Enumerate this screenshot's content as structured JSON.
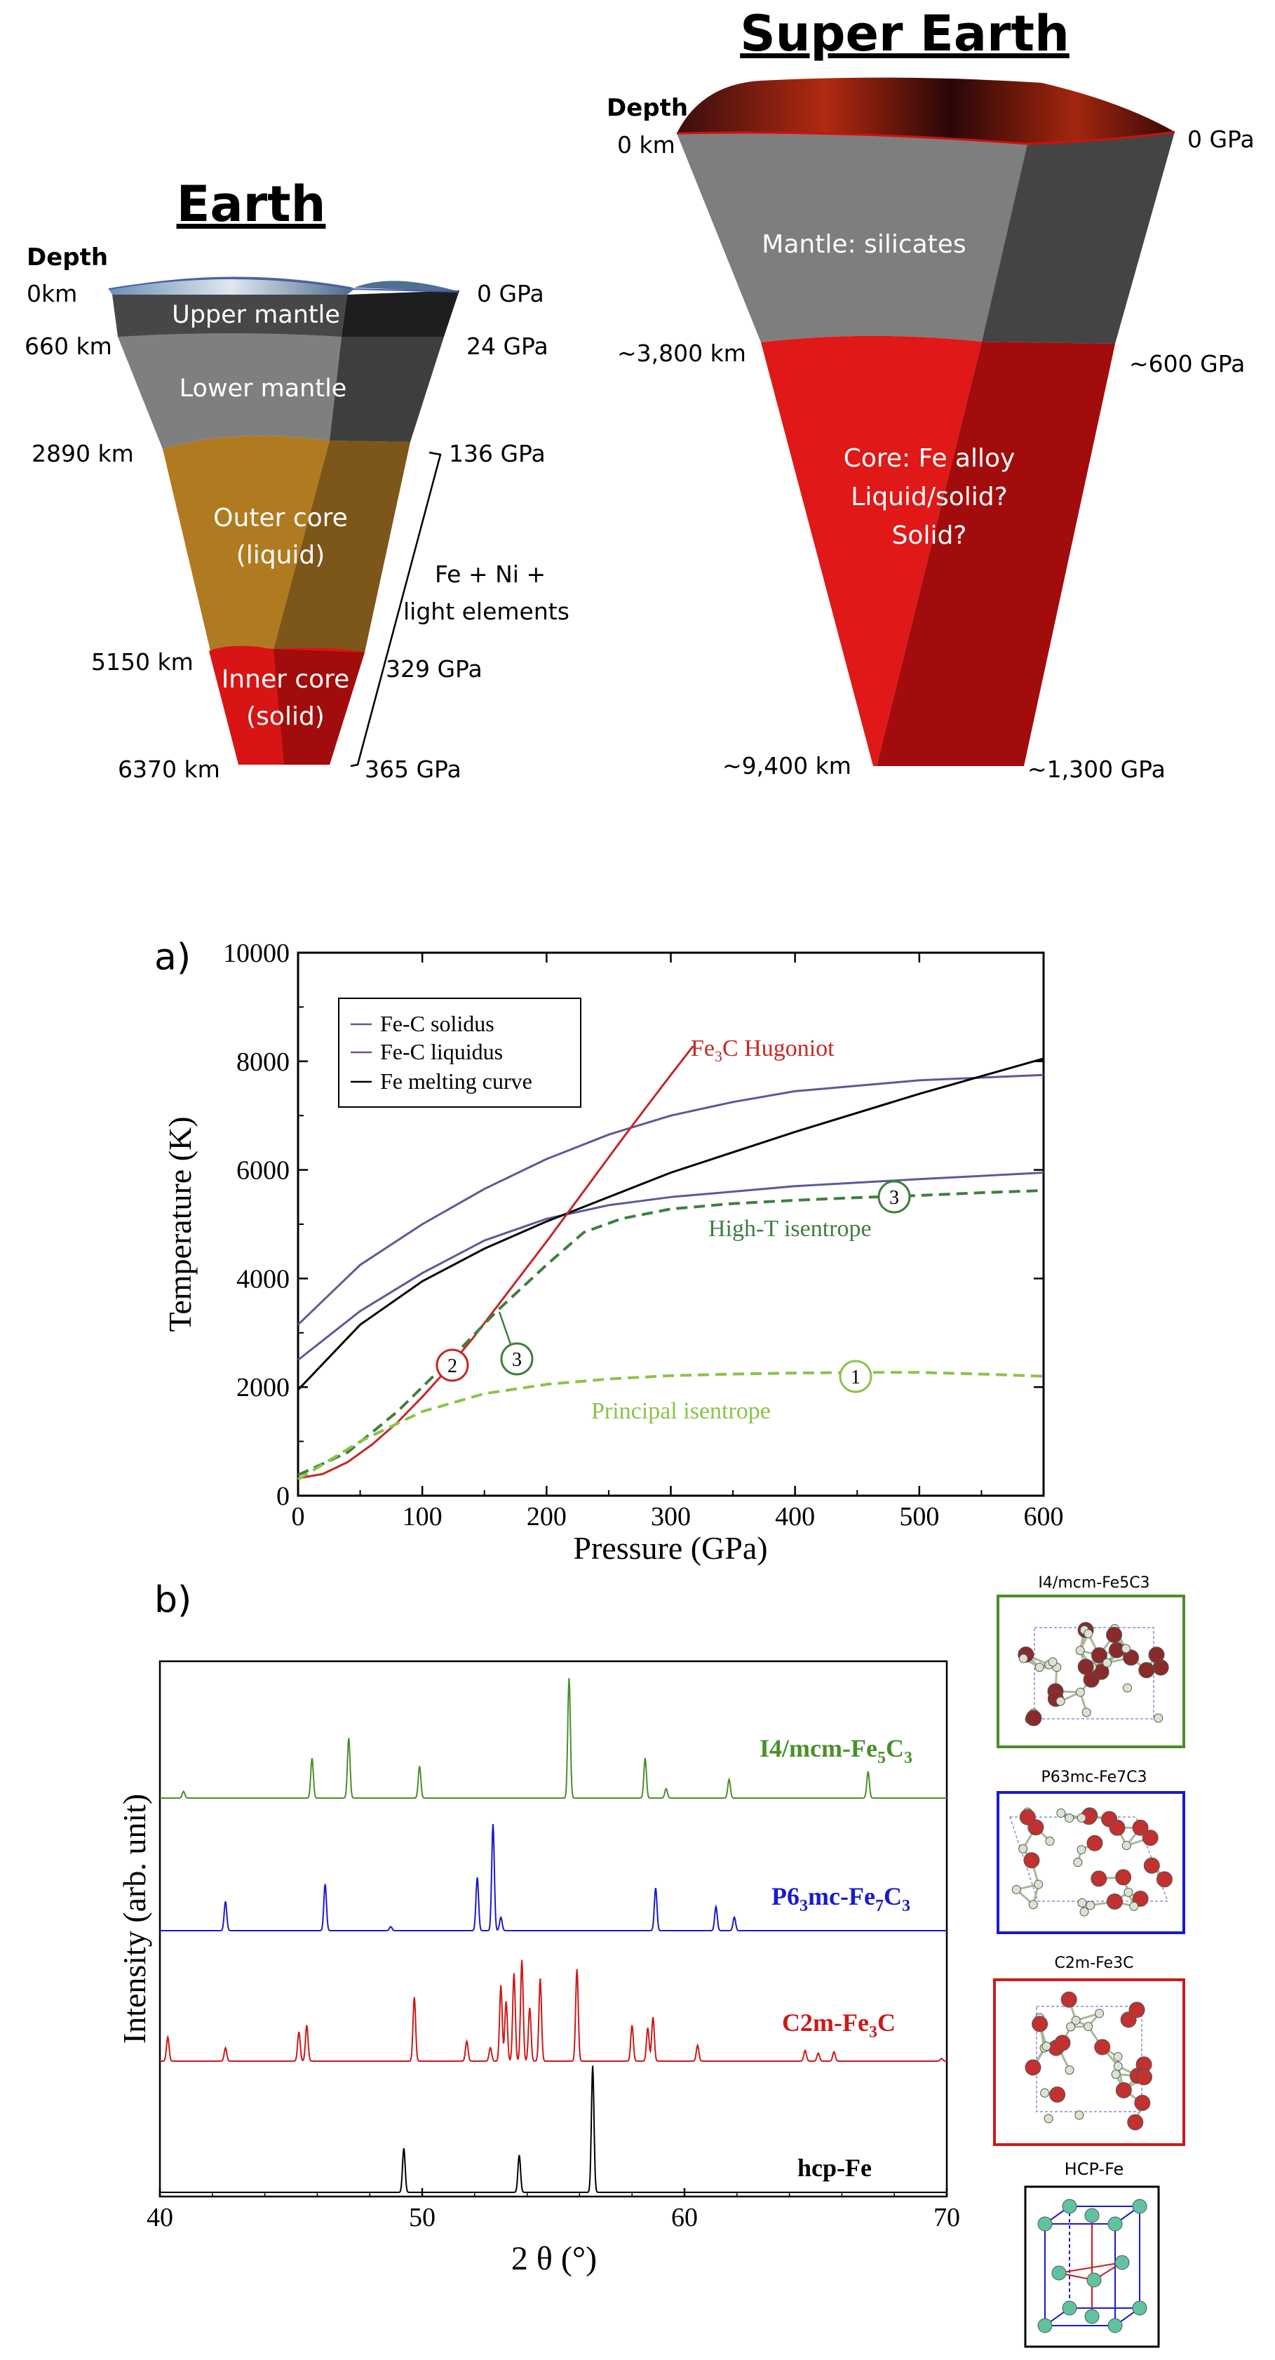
{
  "earth": {
    "title": "Earth",
    "depth_header": "Depth",
    "layers": [
      "Upper mantle",
      "Lower mantle",
      "Outer core",
      "(liquid)",
      "Inner core",
      "(solid)"
    ],
    "depths": [
      "0km",
      "660 km",
      "2890 km",
      "5150 km",
      "6370 km"
    ],
    "pressures": [
      "0 GPa",
      "24 GPa",
      "136 GPa",
      "329 GPa",
      "365 GPa"
    ],
    "composition": [
      "Fe + Ni +",
      "light elements"
    ]
  },
  "super_earth": {
    "title": "Super Earth",
    "depth_header": "Depth",
    "layers": [
      "Mantle: silicates",
      "Core: Fe alloy",
      "Liquid/solid?",
      "Solid?"
    ],
    "depths": [
      "0 km",
      "~3,800 km",
      "~9,400 km"
    ],
    "pressures": [
      "0 GPa",
      "~600 GPa",
      "~1,300 GPa"
    ]
  },
  "panel_a": {
    "label": "a)",
    "chart_data": {
      "type": "line",
      "xlabel": "Pressure (GPa)",
      "ylabel": "Temperature (K)",
      "xlim": [
        0,
        600
      ],
      "ylim": [
        0,
        10000
      ],
      "xticks": [
        0,
        100,
        200,
        300,
        400,
        500,
        600
      ],
      "yticks": [
        0,
        2000,
        4000,
        6000,
        8000,
        10000
      ],
      "legend": [
        "Fe-C solidus",
        "Fe-C liquidus",
        "Fe melting curve"
      ],
      "series": [
        {
          "name": "Fe-C solidus",
          "color": "#5a5a9a",
          "style": "solid",
          "x": [
            0,
            50,
            100,
            150,
            200,
            250,
            300,
            400,
            500,
            600
          ],
          "y": [
            2500,
            3400,
            4100,
            4700,
            5100,
            5350,
            5500,
            5700,
            5830,
            5950
          ]
        },
        {
          "name": "Fe-C liquidus",
          "color": "#5a5a9a",
          "style": "solid",
          "x": [
            0,
            50,
            100,
            150,
            200,
            250,
            300,
            350,
            400,
            500,
            600
          ],
          "y": [
            3150,
            4250,
            5000,
            5650,
            6200,
            6650,
            7000,
            7250,
            7450,
            7650,
            7750
          ]
        },
        {
          "name": "Fe melting curve",
          "color": "#000000",
          "style": "solid",
          "x": [
            0,
            50,
            100,
            150,
            200,
            250,
            300,
            400,
            500,
            600
          ],
          "y": [
            1950,
            3150,
            3950,
            4550,
            5050,
            5500,
            5950,
            6700,
            7400,
            8050
          ]
        },
        {
          "name": "Fe3C Hugoniot",
          "color": "#c62828",
          "style": "solid",
          "x": [
            0,
            20,
            40,
            60,
            80,
            100,
            120,
            140,
            160,
            180,
            200,
            220,
            240,
            260,
            280,
            300,
            318
          ],
          "y": [
            320,
            400,
            620,
            950,
            1350,
            1820,
            2330,
            2880,
            3480,
            4080,
            4680,
            5300,
            5920,
            6540,
            7150,
            7750,
            8280
          ]
        },
        {
          "name": "High-T isentrope",
          "color": "#3f7f3f",
          "style": "dashed",
          "x": [
            0,
            40,
            80,
            120,
            160,
            200,
            230,
            260,
            300,
            350,
            400,
            450,
            500,
            550,
            600
          ],
          "y": [
            380,
            800,
            1550,
            2450,
            3400,
            4250,
            4850,
            5100,
            5280,
            5380,
            5440,
            5490,
            5530,
            5580,
            5620
          ]
        },
        {
          "name": "Principal isentrope",
          "color": "#8bc34a",
          "style": "dashed",
          "x": [
            0,
            50,
            100,
            150,
            200,
            250,
            300,
            350,
            400,
            450,
            500,
            550,
            600
          ],
          "y": [
            300,
            1000,
            1550,
            1880,
            2050,
            2150,
            2210,
            2240,
            2260,
            2270,
            2270,
            2240,
            2200
          ]
        }
      ],
      "annotations": {
        "hugoniot": "Fe3C Hugoniot",
        "high_t": "High-T isentrope",
        "principal": "Principal isentrope",
        "markers": [
          "2",
          "3",
          "3",
          "1"
        ]
      }
    }
  },
  "panel_b": {
    "label": "b)",
    "chart_data": {
      "type": "line",
      "xlabel": "2 θ (°)",
      "ylabel": "Intensity (arb. unit)",
      "xlim": [
        40,
        70
      ],
      "xticks": [
        40,
        50,
        60,
        70
      ],
      "series": [
        {
          "name": "I4/mcm-Fe5C3",
          "color": "#4a8f2a",
          "peaks": [
            [
              40.9,
              0.05
            ],
            [
              45.8,
              0.3
            ],
            [
              47.2,
              0.45
            ],
            [
              49.9,
              0.24
            ],
            [
              55.6,
              0.9
            ],
            [
              58.5,
              0.3
            ],
            [
              59.3,
              0.07
            ],
            [
              61.7,
              0.14
            ],
            [
              67.0,
              0.2
            ]
          ]
        },
        {
          "name": "P63mc-Fe7C3",
          "color": "#1a1acc",
          "peaks": [
            [
              42.5,
              0.22
            ],
            [
              46.3,
              0.35
            ],
            [
              48.8,
              0.03
            ],
            [
              52.1,
              0.4
            ],
            [
              52.7,
              0.8
            ],
            [
              53.0,
              0.1
            ],
            [
              58.9,
              0.32
            ],
            [
              61.2,
              0.18
            ],
            [
              61.9,
              0.1
            ]
          ]
        },
        {
          "name": "C2m-Fe3C",
          "color": "#cc1a1a",
          "peaks": [
            [
              40.3,
              0.18
            ],
            [
              42.5,
              0.1
            ],
            [
              45.3,
              0.22
            ],
            [
              45.6,
              0.27
            ],
            [
              49.7,
              0.48
            ],
            [
              51.7,
              0.15
            ],
            [
              52.6,
              0.1
            ],
            [
              53.0,
              0.57
            ],
            [
              53.2,
              0.45
            ],
            [
              53.5,
              0.66
            ],
            [
              53.8,
              0.76
            ],
            [
              54.1,
              0.4
            ],
            [
              54.5,
              0.62
            ],
            [
              55.9,
              0.69
            ],
            [
              58.0,
              0.27
            ],
            [
              58.6,
              0.25
            ],
            [
              58.8,
              0.33
            ],
            [
              60.5,
              0.12
            ],
            [
              64.6,
              0.08
            ],
            [
              65.1,
              0.06
            ],
            [
              65.7,
              0.07
            ],
            [
              69.8,
              0.02
            ]
          ]
        },
        {
          "name": "hcp-Fe",
          "color": "#000000",
          "peaks": [
            [
              49.3,
              0.33
            ],
            [
              53.7,
              0.28
            ],
            [
              56.5,
              0.95
            ]
          ]
        }
      ],
      "labels": {
        "fe5c3_main": "I4/mcm-Fe",
        "fe5c3_s1": "5",
        "fe5c3_m": "C",
        "fe5c3_s2": "3",
        "fe7c3_main": "P6",
        "fe7c3_s0": "3",
        "fe7c3_m": "mc-Fe",
        "fe7c3_s1": "7",
        "fe7c3_m2": "C",
        "fe7c3_s2": "3",
        "fe3c_main": "C2m-Fe",
        "fe3c_s1": "3",
        "fe3c_m": "C",
        "fe": "hcp-Fe"
      }
    }
  },
  "structure_panels": [
    {
      "title": "I4/mcm-Fe5C3",
      "color": "#4a8f2a"
    },
    {
      "title": "P63mc-Fe7C3",
      "color": "#1a1acc"
    },
    {
      "title": "C2m-Fe3C",
      "color": "#cc1a1a"
    },
    {
      "title": "HCP-Fe",
      "color": "#000000"
    }
  ]
}
